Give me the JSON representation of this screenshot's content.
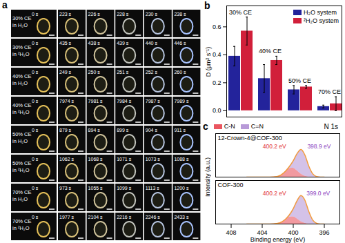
{
  "panel_a": {
    "panel_label": "a",
    "rows": [
      {
        "label": [
          "30% CE",
          "in H₂O"
        ],
        "times": [
          "0 s",
          "223 s",
          "226 s",
          "228 s",
          "230 s",
          "238 s"
        ]
      },
      {
        "label": [
          "30% CE",
          "in ²H₂O"
        ],
        "times": [
          "0 s",
          "435 s",
          "438 s",
          "439 s",
          "440 s",
          "446 s"
        ]
      },
      {
        "label": [
          "40% CE",
          "in H₂O"
        ],
        "times": [
          "0 s",
          "249 s",
          "250 s",
          "251 s",
          "252 s",
          "260 s"
        ]
      },
      {
        "label": [
          "40% CE",
          "in ²H₂O"
        ],
        "times": [
          "0 s",
          "7974 s",
          "7981 s",
          "7984 s",
          "7987 s",
          "7989 s"
        ]
      },
      {
        "label": [
          "50% CE",
          "in H₂O"
        ],
        "times": [
          "0 s",
          "879 s",
          "894 s",
          "899 s",
          "904 s",
          "911 s"
        ]
      },
      {
        "label": [
          "50% CE",
          "in ²H₂O"
        ],
        "times": [
          "0 s",
          "1062 s",
          "1068 s",
          "1071 s",
          "1073 s",
          "1088 s"
        ]
      },
      {
        "label": [
          "70% CE",
          "in H₂O"
        ],
        "times": [
          "0 s",
          "973 s",
          "1055 s",
          "1099 s",
          "1113 s",
          "1200 s"
        ]
      },
      {
        "label": [
          "70% CE",
          "in ²H₂O"
        ],
        "times": [
          "0 s",
          "1977 s",
          "2104 s",
          "2216 s",
          "2246 s",
          "2433 s"
        ]
      }
    ]
  },
  "chart_data": [
    {
      "type": "bar",
      "panel_label": "b",
      "categories": [
        "30% CE",
        "40% CE",
        "50% CE",
        "70% CE"
      ],
      "series": [
        {
          "name": "H₂O system",
          "color": "#23239b",
          "values": [
            0.39,
            0.23,
            0.15,
            0.03
          ],
          "errors": [
            0.07,
            0.1,
            0.03,
            0.01
          ]
        },
        {
          "name": "²H₂O system",
          "color": "#d11f3a",
          "values": [
            0.57,
            0.36,
            0.17,
            0.05
          ],
          "errors": [
            0.1,
            0.03,
            0.01,
            0.05
          ]
        }
      ],
      "ylabel": "D (μm² s⁻¹)",
      "ylim": [
        -0.05,
        0.75
      ],
      "yticks": [
        {
          "value": 0,
          "label": "0.0"
        },
        0.2,
        0.4,
        0.6
      ],
      "legend": "top-right",
      "tick_labels": "y"
    },
    {
      "type": "area",
      "panel_label": "c",
      "title": "N 1s",
      "xlabel": "Binding energy (eV)",
      "ylabel": "Intensity (a.u.)",
      "x": [
        406,
        405,
        404,
        403,
        402,
        401.5,
        401,
        400.5,
        400,
        399.5,
        399,
        398.5,
        398,
        397.5,
        397,
        396.5,
        396
      ],
      "xlim": [
        410,
        394
      ],
      "xticks": [
        408,
        404,
        400,
        396
      ],
      "ylim": [
        0,
        7
      ],
      "tick_labels": "x",
      "legend": "top-left",
      "panels": [
        {
          "name": "12-Crown-4@COF-300",
          "series": [
            {
              "name": "C-N",
              "color": "#ea5660",
              "values": [
                0,
                0,
                0,
                0,
                0.12,
                0.4,
                0.91,
                1.4,
                1.45,
                1.02,
                0.49,
                0.16,
                0.03,
                0,
                0,
                0,
                0
              ]
            },
            {
              "name": "C=N",
              "color": "#b89ad8",
              "values": [
                0,
                0,
                0,
                0,
                0,
                0,
                0.04,
                0.29,
                1.17,
                2.77,
                3.96,
                3.4,
                1.75,
                0.54,
                0.1,
                0.01,
                0
              ]
            }
          ],
          "envelope": {
            "color": "#f39c3c",
            "values": [
              0,
              0,
              0,
              0,
              0.12,
              0.4,
              0.95,
              1.69,
              2.62,
              3.79,
              4.45,
              3.56,
              1.78,
              0.54,
              0.1,
              0.01,
              0
            ]
          },
          "peaks": [
            {
              "x": 400.2,
              "label": "400.2 eV",
              "series": "C-N",
              "color": "#e0303a"
            },
            {
              "x": 398.9,
              "label": "398.9 eV",
              "series": "C=N",
              "color": "#8a3fc0"
            }
          ]
        },
        {
          "name": "COF-300",
          "series": [
            {
              "name": "C-N",
              "color": "#ea5660",
              "values": [
                0,
                0,
                0,
                0,
                0.1,
                0.32,
                0.73,
                1.12,
                1.16,
                0.82,
                0.39,
                0.13,
                0.02,
                0,
                0,
                0,
                0
              ]
            },
            {
              "name": "C=N",
              "color": "#b89ad8",
              "values": [
                0,
                0,
                0,
                0,
                0,
                0,
                0.05,
                0.35,
                1.3,
                2.95,
                4.2,
                3.7,
                2.0,
                0.65,
                0.13,
                0.01,
                0
              ]
            }
          ],
          "envelope": {
            "color": "#f39c3c",
            "values": [
              0,
              0,
              0,
              0,
              0.1,
              0.32,
              0.78,
              1.47,
              2.46,
              3.77,
              4.59,
              3.83,
              2.02,
              0.65,
              0.13,
              0.01,
              0
            ]
          },
          "peaks": [
            {
              "x": 400.2,
              "label": "400.2 eV",
              "series": "C-N",
              "color": "#e0303a"
            },
            {
              "x": 399.0,
              "label": "399.0 eV",
              "series": "C=N",
              "color": "#8a3fc0"
            }
          ]
        }
      ]
    }
  ]
}
